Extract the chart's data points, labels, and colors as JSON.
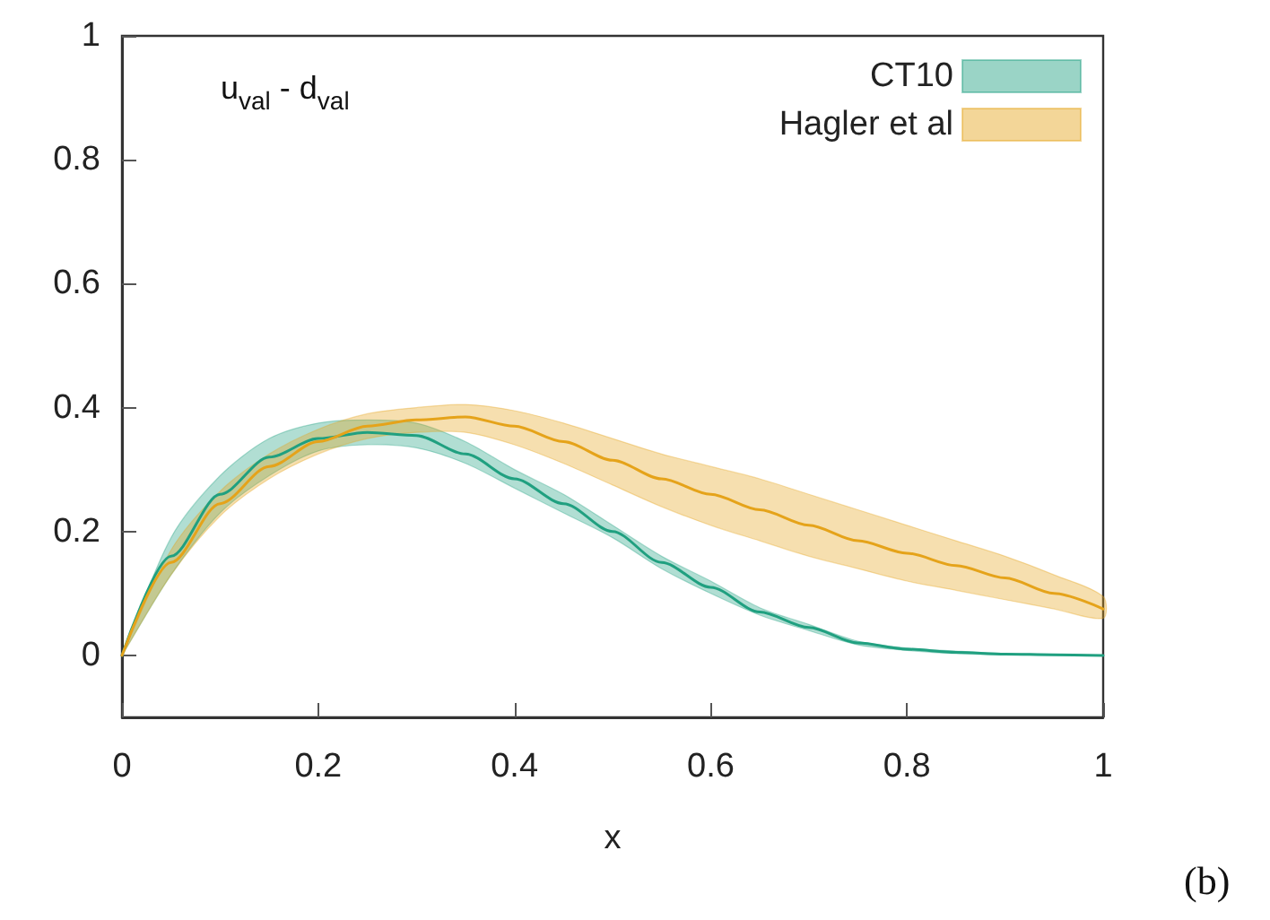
{
  "chart_data": {
    "type": "line",
    "xlabel": "x",
    "annotations": [
      "u$_{val}$ - d$_{val}$",
      "(b)"
    ],
    "x": [
      0,
      0.05,
      0.1,
      0.15,
      0.2,
      0.25,
      0.3,
      0.35,
      0.4,
      0.45,
      0.5,
      0.55,
      0.6,
      0.65,
      0.7,
      0.75,
      0.8,
      0.85,
      0.9,
      0.95,
      1
    ],
    "series": [
      {
        "name": "CT10",
        "color": "#20a080",
        "values": [
          0,
          0.16,
          0.26,
          0.32,
          0.35,
          0.36,
          0.355,
          0.325,
          0.285,
          0.245,
          0.2,
          0.15,
          0.11,
          0.07,
          0.045,
          0.02,
          0.01,
          0.005,
          0.002,
          0.001,
          0
        ],
        "lower": [
          0,
          0.13,
          0.23,
          0.29,
          0.33,
          0.34,
          0.335,
          0.31,
          0.27,
          0.23,
          0.19,
          0.14,
          0.1,
          0.065,
          0.04,
          0.017,
          0.008,
          0.003,
          0.001,
          0,
          0
        ],
        "upper": [
          0,
          0.19,
          0.29,
          0.35,
          0.375,
          0.38,
          0.375,
          0.345,
          0.3,
          0.26,
          0.21,
          0.16,
          0.12,
          0.077,
          0.05,
          0.023,
          0.012,
          0.007,
          0.003,
          0.002,
          0
        ]
      },
      {
        "name": "Hagler et al",
        "color": "#e5a31a",
        "values": [
          0,
          0.15,
          0.245,
          0.305,
          0.345,
          0.37,
          0.38,
          0.385,
          0.37,
          0.345,
          0.315,
          0.285,
          0.26,
          0.235,
          0.21,
          0.185,
          0.165,
          0.145,
          0.125,
          0.1,
          0.075
        ],
        "lower": [
          0,
          0.13,
          0.225,
          0.285,
          0.325,
          0.35,
          0.36,
          0.36,
          0.34,
          0.31,
          0.275,
          0.24,
          0.21,
          0.185,
          0.16,
          0.14,
          0.12,
          0.105,
          0.09,
          0.075,
          0.06
        ],
        "upper": [
          0,
          0.17,
          0.265,
          0.325,
          0.365,
          0.39,
          0.4,
          0.405,
          0.395,
          0.375,
          0.35,
          0.325,
          0.305,
          0.285,
          0.26,
          0.235,
          0.21,
          0.185,
          0.16,
          0.13,
          0.095
        ]
      }
    ],
    "xlim": [
      0,
      1
    ],
    "xticks": [
      0,
      0.2,
      0.4,
      0.6,
      0.8,
      1
    ],
    "ylim": [
      -0.1,
      1
    ],
    "yticks": [
      0,
      0.2,
      0.4,
      0.6,
      0.8,
      1
    ],
    "grid": false,
    "legend": "top right",
    "marker": "none",
    "line_style": "solid"
  }
}
